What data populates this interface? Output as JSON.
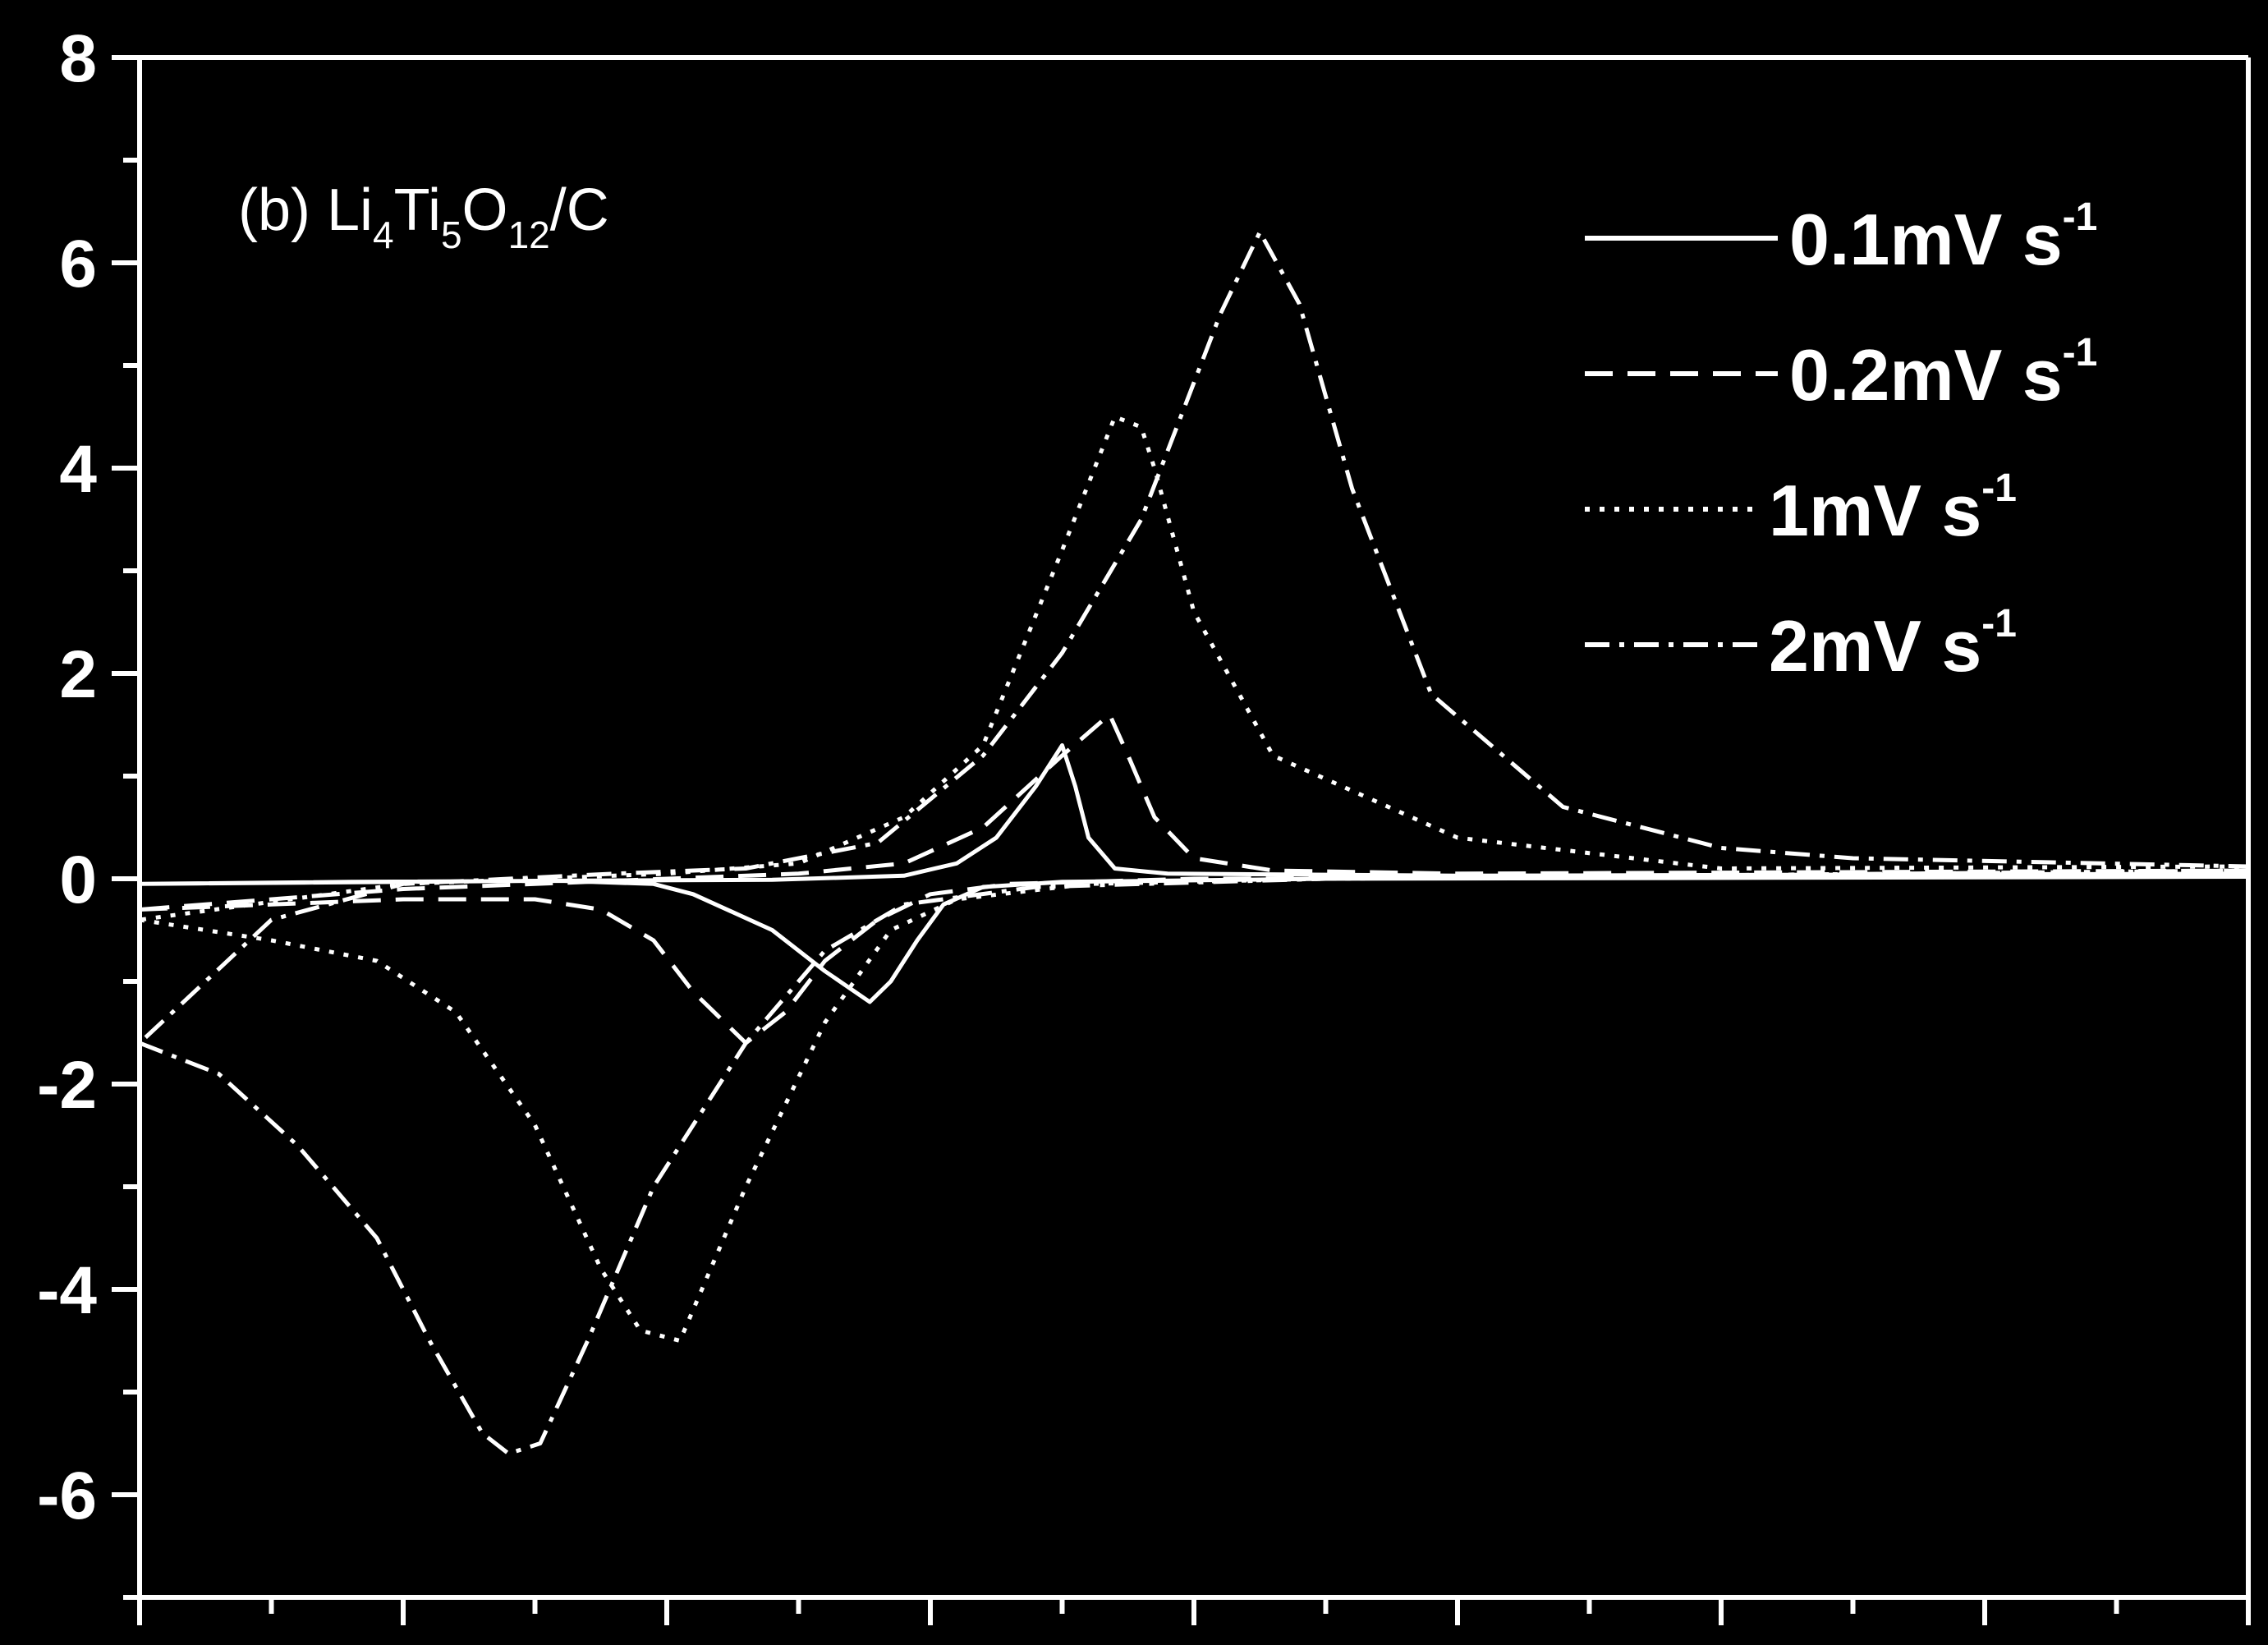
{
  "colors": {
    "background": "#000000",
    "foreground": "#ffffff"
  },
  "chart_data": {
    "type": "line",
    "title": "",
    "xlabel": "",
    "ylabel": "",
    "panel_label": {
      "prefix": "(b) Li",
      "sub1": "4",
      "mid1": "Ti",
      "sub2": "5",
      "mid2": "O",
      "sub3": "12",
      "suffix": "/C"
    },
    "x_ticks_count": 9,
    "xlim": [
      0,
      8
    ],
    "ylim": [
      -7,
      8
    ],
    "y_ticks": [
      8,
      6,
      4,
      2,
      0,
      -2,
      -4,
      -6
    ],
    "y_tick_labels": [
      "8",
      "6",
      "4",
      "2",
      "0",
      "-2",
      "-4",
      "-6"
    ],
    "legend_position": "top-right",
    "grid": false,
    "series": [
      {
        "name": "0.1mV s",
        "unit_sup": "-1",
        "dash": "solid",
        "points": [
          [
            0,
            -0.05
          ],
          [
            0.8,
            -0.03
          ],
          [
            1.6,
            -0.02
          ],
          [
            1.95,
            -0.05
          ],
          [
            2.1,
            -0.15
          ],
          [
            2.4,
            -0.5
          ],
          [
            2.6,
            -0.9
          ],
          [
            2.77,
            -1.2
          ],
          [
            2.85,
            -1.0
          ],
          [
            2.95,
            -0.6
          ],
          [
            3.05,
            -0.25
          ],
          [
            3.2,
            -0.08
          ],
          [
            3.5,
            -0.03
          ],
          [
            4.5,
            0.0
          ],
          [
            8,
            0.02
          ],
          [
            8,
            0.05
          ],
          [
            5,
            0.03
          ],
          [
            3.9,
            0.05
          ],
          [
            3.7,
            0.1
          ],
          [
            3.6,
            0.4
          ],
          [
            3.55,
            0.9
          ],
          [
            3.5,
            1.3
          ],
          [
            3.4,
            0.9
          ],
          [
            3.25,
            0.4
          ],
          [
            3.1,
            0.15
          ],
          [
            2.9,
            0.03
          ],
          [
            2.4,
            -0.01
          ],
          [
            1.5,
            -0.02
          ],
          [
            0,
            -0.05
          ]
        ]
      },
      {
        "name": "0.2mV s",
        "unit_sup": "-1",
        "dash": "dashed",
        "points": [
          [
            0,
            -0.3
          ],
          [
            0.5,
            -0.25
          ],
          [
            1.0,
            -0.2
          ],
          [
            1.5,
            -0.2
          ],
          [
            1.75,
            -0.3
          ],
          [
            1.95,
            -0.6
          ],
          [
            2.1,
            -1.1
          ],
          [
            2.3,
            -1.6
          ],
          [
            2.45,
            -1.3
          ],
          [
            2.6,
            -0.8
          ],
          [
            2.8,
            -0.4
          ],
          [
            3.0,
            -0.15
          ],
          [
            3.3,
            -0.05
          ],
          [
            4.0,
            0.0
          ],
          [
            8,
            0.05
          ],
          [
            8,
            0.08
          ],
          [
            5,
            0.05
          ],
          [
            4.3,
            0.08
          ],
          [
            4.0,
            0.2
          ],
          [
            3.85,
            0.6
          ],
          [
            3.75,
            1.2
          ],
          [
            3.68,
            1.6
          ],
          [
            3.5,
            1.2
          ],
          [
            3.2,
            0.5
          ],
          [
            2.9,
            0.15
          ],
          [
            2.5,
            0.05
          ],
          [
            2.0,
            0.0
          ],
          [
            1.0,
            -0.1
          ],
          [
            0,
            -0.3
          ]
        ]
      },
      {
        "name": "1mV s",
        "unit_sup": "-1",
        "dash": "dotted",
        "points": [
          [
            0,
            -0.4
          ],
          [
            0.5,
            -0.6
          ],
          [
            0.9,
            -0.8
          ],
          [
            1.2,
            -1.3
          ],
          [
            1.5,
            -2.4
          ],
          [
            1.75,
            -3.8
          ],
          [
            1.9,
            -4.4
          ],
          [
            2.05,
            -4.5
          ],
          [
            2.3,
            -3.0
          ],
          [
            2.6,
            -1.4
          ],
          [
            2.85,
            -0.5
          ],
          [
            3.1,
            -0.2
          ],
          [
            3.6,
            -0.05
          ],
          [
            4.5,
            0.0
          ],
          [
            8,
            0.08
          ],
          [
            8,
            0.12
          ],
          [
            6,
            0.1
          ],
          [
            5.0,
            0.4
          ],
          [
            4.3,
            1.2
          ],
          [
            4.0,
            2.6
          ],
          [
            3.85,
            4.0
          ],
          [
            3.8,
            4.4
          ],
          [
            3.7,
            4.5
          ],
          [
            3.5,
            3.2
          ],
          [
            3.2,
            1.3
          ],
          [
            2.9,
            0.6
          ],
          [
            2.5,
            0.15
          ],
          [
            2.0,
            0.05
          ],
          [
            1.0,
            -0.05
          ],
          [
            0,
            -0.4
          ]
        ]
      },
      {
        "name": "2mV s",
        "unit_sup": "-1",
        "dash": "dashdot",
        "points": [
          [
            0,
            -1.6
          ],
          [
            0.3,
            -1.9
          ],
          [
            0.6,
            -2.6
          ],
          [
            0.9,
            -3.5
          ],
          [
            1.1,
            -4.5
          ],
          [
            1.3,
            -5.4
          ],
          [
            1.4,
            -5.6
          ],
          [
            1.52,
            -5.5
          ],
          [
            1.7,
            -4.5
          ],
          [
            1.95,
            -3.0
          ],
          [
            2.3,
            -1.6
          ],
          [
            2.6,
            -0.7
          ],
          [
            2.9,
            -0.25
          ],
          [
            3.4,
            -0.08
          ],
          [
            4.5,
            0.0
          ],
          [
            8,
            0.08
          ],
          [
            8,
            0.12
          ],
          [
            6.5,
            0.2
          ],
          [
            6.0,
            0.3
          ],
          [
            5.4,
            0.7
          ],
          [
            4.9,
            1.8
          ],
          [
            4.6,
            3.8
          ],
          [
            4.4,
            5.6
          ],
          [
            4.25,
            6.3
          ],
          [
            4.1,
            5.5
          ],
          [
            3.8,
            3.5
          ],
          [
            3.5,
            2.2
          ],
          [
            3.2,
            1.2
          ],
          [
            2.8,
            0.35
          ],
          [
            2.3,
            0.1
          ],
          [
            1.8,
            0.05
          ],
          [
            1.0,
            -0.05
          ],
          [
            0.5,
            -0.4
          ],
          [
            0,
            -1.6
          ]
        ]
      }
    ]
  }
}
